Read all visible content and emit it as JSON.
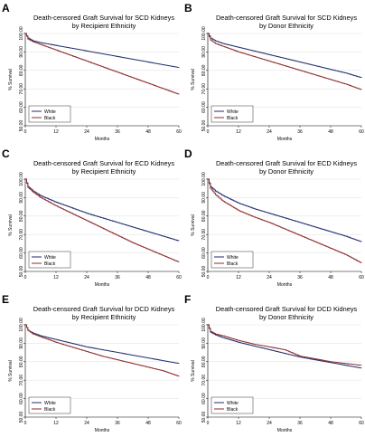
{
  "chart_data": [
    {
      "panel": "A",
      "type": "line",
      "title": "Death-censored Graft Survival for SCD Kidneys",
      "subtitle": "by Recipient Ethnicity",
      "xlabel": "Months",
      "ylabel": "% Survival",
      "xlim": [
        0,
        60
      ],
      "ylim": [
        50,
        100
      ],
      "xticks": [
        "0",
        "12",
        "24",
        "36",
        "48",
        "60"
      ],
      "yticks": [
        "50.00",
        "60.00",
        "70.00",
        "80.00",
        "90.00",
        "100.00"
      ],
      "legend_position": "bottom-left",
      "series": [
        {
          "name": "White",
          "color": "#1f2d6b",
          "x": [
            0,
            1,
            3,
            6,
            12,
            18,
            24,
            30,
            36,
            42,
            48,
            54,
            60
          ],
          "y": [
            100,
            97.5,
            96,
            95,
            93.5,
            92,
            90.5,
            89,
            87.5,
            86,
            84.5,
            83,
            81.5
          ]
        },
        {
          "name": "Black",
          "color": "#8c2a2a",
          "x": [
            0,
            1,
            3,
            6,
            12,
            18,
            24,
            30,
            36,
            42,
            48,
            54,
            60
          ],
          "y": [
            100,
            97,
            95.5,
            94,
            91,
            88,
            85,
            82,
            79,
            76,
            73,
            70,
            67
          ]
        }
      ]
    },
    {
      "panel": "B",
      "type": "line",
      "title": "Death-censored Graft Survival for SCD Kidneys",
      "subtitle": "by Donor Ethnicity",
      "xlabel": "Months",
      "ylabel": "% Survival",
      "xlim": [
        0,
        60
      ],
      "ylim": [
        50,
        100
      ],
      "xticks": [
        "0",
        "12",
        "24",
        "36",
        "48",
        "60"
      ],
      "yticks": [
        "50.00",
        "60.00",
        "70.00",
        "80.00",
        "90.00",
        "100.00"
      ],
      "legend_position": "bottom-left",
      "series": [
        {
          "name": "White",
          "color": "#1f2d6b",
          "x": [
            0,
            1,
            3,
            6,
            12,
            18,
            24,
            30,
            36,
            42,
            48,
            54,
            60
          ],
          "y": [
            100,
            97.5,
            96,
            94.5,
            92.5,
            90.5,
            88.5,
            86.5,
            84.5,
            82.5,
            80.5,
            78.5,
            76
          ]
        },
        {
          "name": "Black",
          "color": "#8c2a2a",
          "x": [
            0,
            1,
            3,
            6,
            12,
            18,
            24,
            30,
            36,
            42,
            48,
            54,
            60
          ],
          "y": [
            100,
            96.5,
            94.5,
            93,
            90,
            87.5,
            85,
            82.5,
            80,
            77.5,
            75,
            72.5,
            69.5
          ]
        }
      ]
    },
    {
      "panel": "C",
      "type": "line",
      "title": "Death-censored Graft Survival for ECD Kidneys",
      "subtitle": "by Recipient Ethnicity",
      "xlabel": "Months",
      "ylabel": "% Survival",
      "xlim": [
        0,
        60
      ],
      "ylim": [
        50,
        100
      ],
      "xticks": [
        "0",
        "12",
        "24",
        "36",
        "48",
        "60"
      ],
      "yticks": [
        "50.00",
        "60.00",
        "70.00",
        "80.00",
        "90.00",
        "100.00"
      ],
      "legend_position": "bottom-left",
      "series": [
        {
          "name": "White",
          "color": "#1f2d6b",
          "x": [
            0,
            1,
            3,
            6,
            12,
            18,
            24,
            30,
            36,
            42,
            48,
            54,
            60
          ],
          "y": [
            100,
            96,
            93.5,
            91,
            87.5,
            84.5,
            81.5,
            79,
            76.5,
            74,
            71.5,
            69,
            66.5
          ]
        },
        {
          "name": "Black",
          "color": "#8c2a2a",
          "x": [
            0,
            1,
            3,
            6,
            12,
            18,
            24,
            30,
            36,
            42,
            48,
            54,
            60
          ],
          "y": [
            100,
            95.5,
            93,
            90,
            85.5,
            81.5,
            77.5,
            73.5,
            69.5,
            65.5,
            62,
            58.5,
            55
          ]
        }
      ]
    },
    {
      "panel": "D",
      "type": "line",
      "title": "Death-censored Graft Survival for ECD Kidneys",
      "subtitle": "by Donor Ethnicity",
      "xlabel": "Months",
      "ylabel": "% Survival",
      "xlim": [
        0,
        60
      ],
      "ylim": [
        50,
        100
      ],
      "xticks": [
        "0",
        "12",
        "24",
        "36",
        "48",
        "60"
      ],
      "yticks": [
        "50.00",
        "60.00",
        "70.00",
        "80.00",
        "90.00",
        "100.00"
      ],
      "legend_position": "bottom-left",
      "series": [
        {
          "name": "White",
          "color": "#1f2d6b",
          "x": [
            0,
            1,
            3,
            6,
            12,
            18,
            24,
            30,
            36,
            42,
            48,
            54,
            60
          ],
          "y": [
            100,
            96,
            93.5,
            91,
            87,
            84,
            81.5,
            79,
            76.5,
            74,
            71.5,
            69,
            66
          ]
        },
        {
          "name": "Black",
          "color": "#8c2a2a",
          "x": [
            0,
            1,
            3,
            6,
            12,
            18,
            24,
            30,
            36,
            42,
            48,
            54,
            58,
            60
          ],
          "y": [
            100,
            95,
            91.5,
            88,
            83,
            79.5,
            76.5,
            73,
            69.5,
            66,
            62.5,
            59,
            56,
            54.5
          ]
        }
      ]
    },
    {
      "panel": "E",
      "type": "line",
      "title": "Death-censored Graft Survival for DCD Kidneys",
      "subtitle": "by Recipient Ethnicity",
      "xlabel": "Months",
      "ylabel": "% Survival",
      "xlim": [
        0,
        60
      ],
      "ylim": [
        50,
        100
      ],
      "xticks": [
        "0",
        "12",
        "24",
        "36",
        "48",
        "60"
      ],
      "yticks": [
        "50.00",
        "60.00",
        "70.00",
        "80.00",
        "90.00",
        "100.00"
      ],
      "legend_position": "bottom-left",
      "series": [
        {
          "name": "White",
          "color": "#1f2d6b",
          "x": [
            0,
            1,
            3,
            6,
            12,
            18,
            24,
            30,
            36,
            42,
            48,
            54,
            60
          ],
          "y": [
            100,
            97,
            95.5,
            94,
            92,
            90,
            88,
            86.5,
            85,
            83.5,
            82,
            80.5,
            79
          ]
        },
        {
          "name": "Black",
          "color": "#8c2a2a",
          "x": [
            0,
            1,
            3,
            6,
            12,
            18,
            24,
            30,
            36,
            42,
            48,
            54,
            58,
            60
          ],
          "y": [
            100,
            97,
            95,
            93.5,
            90.5,
            88,
            85.5,
            83,
            81,
            79,
            77,
            75,
            73,
            72
          ]
        }
      ]
    },
    {
      "panel": "F",
      "type": "line",
      "title": "Death-censored Graft Survival for DCD Kidneys",
      "subtitle": "by Donor Ethnicity",
      "xlabel": "Months",
      "ylabel": "% Survival",
      "xlim": [
        0,
        60
      ],
      "ylim": [
        50,
        100
      ],
      "xticks": [
        "0",
        "12",
        "24",
        "36",
        "48",
        "60"
      ],
      "yticks": [
        "50.00",
        "60.00",
        "70.00",
        "80.00",
        "90.00",
        "100.00"
      ],
      "legend_position": "bottom-left",
      "series": [
        {
          "name": "White",
          "color": "#1f2d6b",
          "x": [
            0,
            1,
            3,
            6,
            12,
            18,
            24,
            30,
            36,
            42,
            48,
            54,
            60
          ],
          "y": [
            100,
            96,
            94.5,
            93,
            90.5,
            88.5,
            86.5,
            84.5,
            82.5,
            81,
            79.5,
            78,
            76.5
          ]
        },
        {
          "name": "Black",
          "color": "#8c2a2a",
          "x": [
            0,
            1,
            3,
            6,
            12,
            18,
            24,
            30,
            36,
            42,
            48,
            54,
            60
          ],
          "y": [
            100,
            96.5,
            95,
            94,
            91.5,
            89.5,
            88,
            86.5,
            83,
            81.5,
            80,
            79,
            78
          ]
        }
      ]
    }
  ]
}
